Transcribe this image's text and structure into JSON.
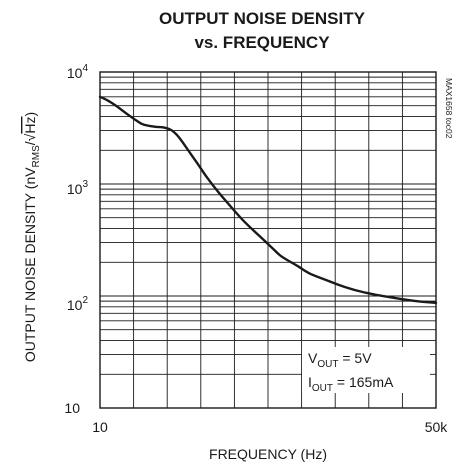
{
  "chart_data": {
    "type": "line",
    "title_line1": "OUTPUT NOISE DENSITY",
    "title_line2": "vs. FREQUENCY",
    "xlabel": "FREQUENCY (Hz)",
    "ylabel_parts": {
      "main": "OUTPUT NOISE  DENSITY (nV",
      "sub": "RMS",
      "slash": "/",
      "radical": "√",
      "radicand": "Hz",
      "close": ")"
    },
    "x_scale": "log",
    "y_scale": "log",
    "xlim": [
      10,
      50000
    ],
    "ylim": [
      10,
      10000
    ],
    "x_tick_labels": [
      "10",
      "50k"
    ],
    "y_ticks": [
      {
        "value": 10000,
        "base": "10",
        "exp": "4"
      },
      {
        "value": 1000,
        "base": "10",
        "exp": "3"
      },
      {
        "value": 100,
        "base": "10",
        "exp": "2"
      },
      {
        "value": 10,
        "base": "10",
        "exp": ""
      }
    ],
    "grid": true,
    "annotation": "MAX1658 toc02",
    "legend": {
      "placement": "bottom-right",
      "lines": [
        {
          "prefix": "V",
          "sub": "OUT",
          "rest": " = 5V"
        },
        {
          "prefix": "I",
          "sub": "OUT",
          "rest": " = 165mA"
        }
      ]
    },
    "series": [
      {
        "x": [
          10,
          12,
          15,
          20,
          25,
          30,
          40,
          50,
          60,
          70,
          80,
          100,
          120,
          150,
          200,
          300,
          400,
          600,
          800,
          1000,
          1500,
          2000,
          3000,
          5000,
          8000,
          15000,
          30000,
          50000
        ],
        "y": [
          6000,
          5600,
          5000,
          4200,
          3700,
          3400,
          3250,
          3200,
          3050,
          2750,
          2400,
          1850,
          1500,
          1150,
          850,
          580,
          450,
          330,
          265,
          225,
          185,
          160,
          140,
          120,
          108,
          98,
          90,
          87
        ]
      }
    ]
  }
}
